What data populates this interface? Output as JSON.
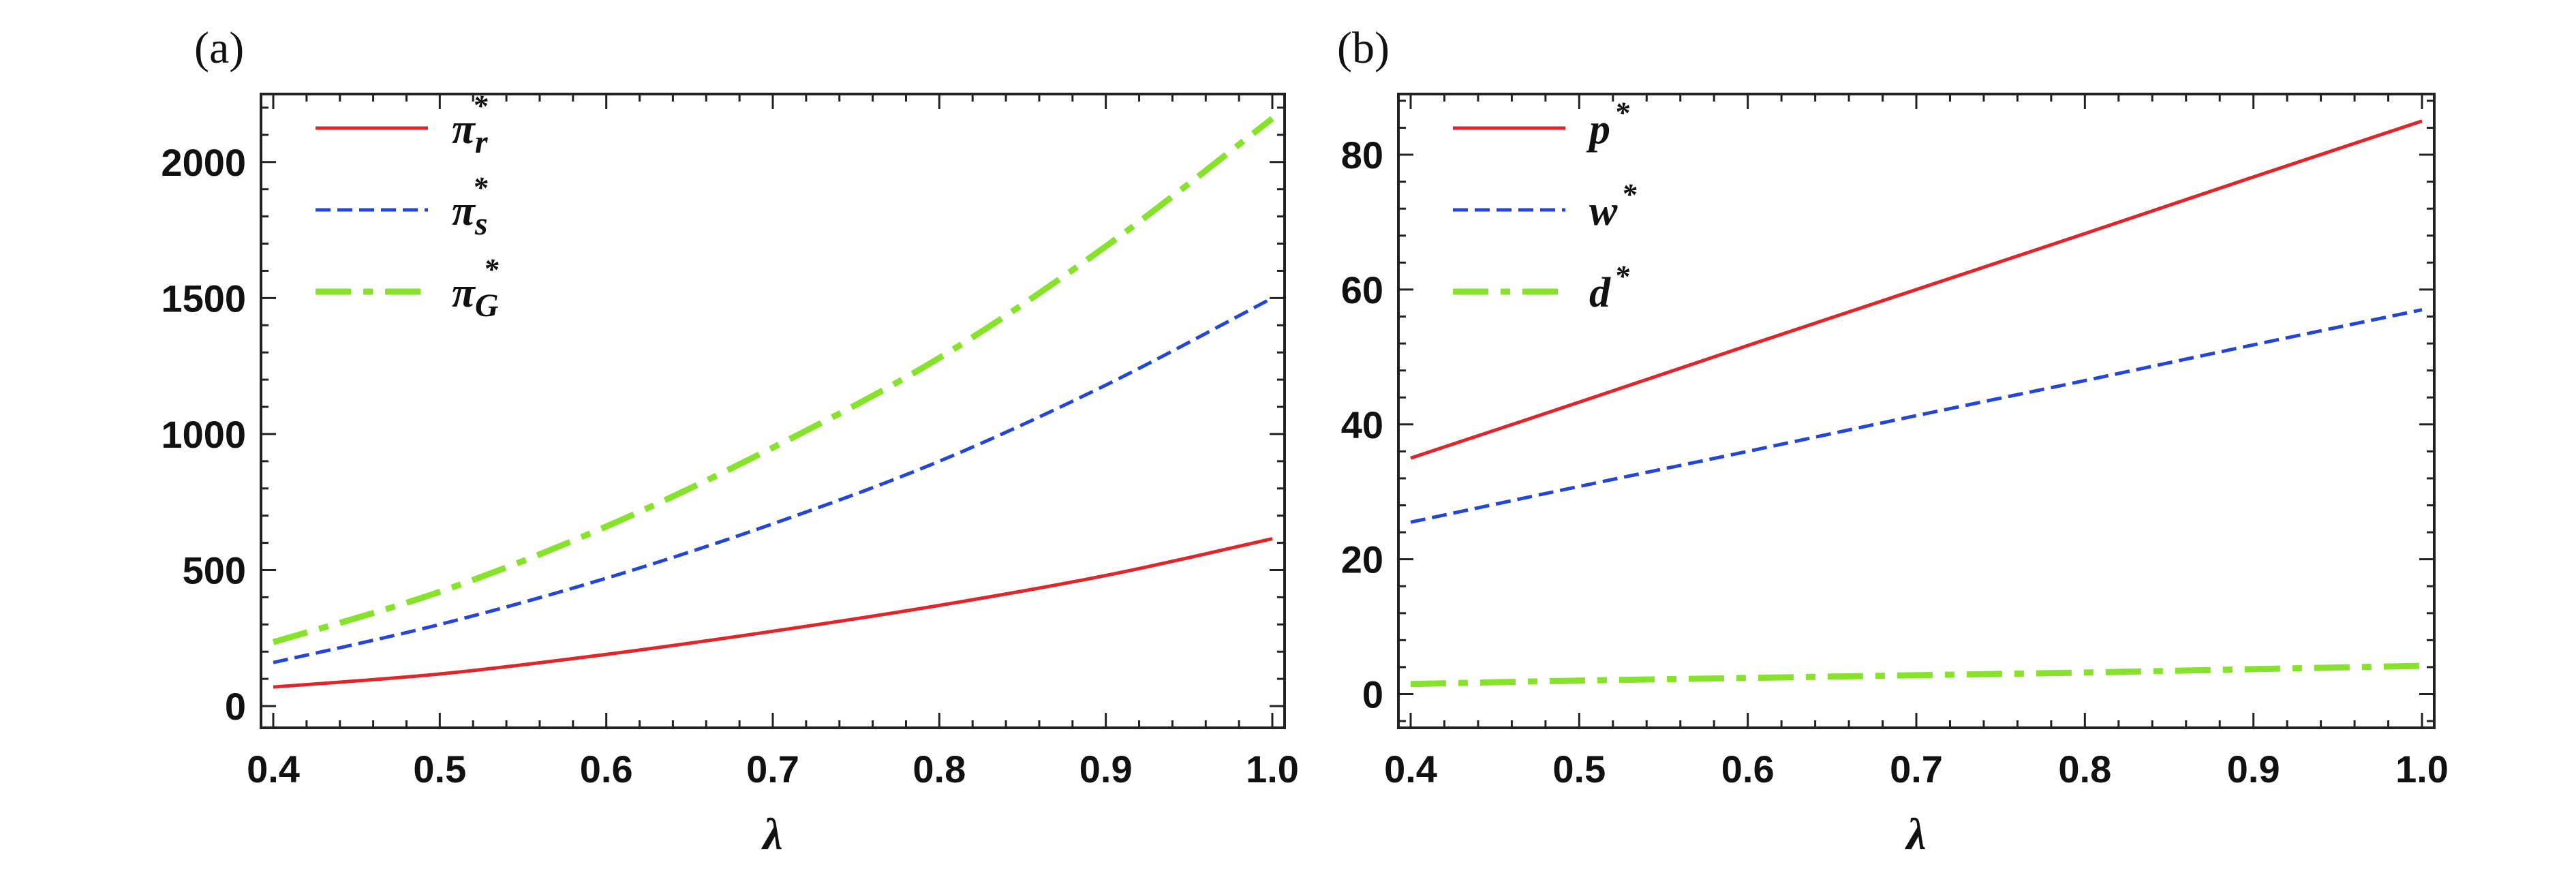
{
  "chart_data": [
    {
      "panel_label": "(a)",
      "type": "line",
      "xlabel": "λ",
      "ylabel": "",
      "xlim": [
        0.4,
        1.0
      ],
      "ylim": [
        -80,
        2250
      ],
      "xticks": [
        "0.4",
        "0.5",
        "0.6",
        "0.7",
        "0.8",
        "0.9",
        "1.0"
      ],
      "yticks": [
        "0",
        "500",
        "1000",
        "1500",
        "2000"
      ],
      "x": [
        0.4,
        0.5,
        0.6,
        0.7,
        0.8,
        0.9,
        1.0
      ],
      "legend_position": "top-left",
      "series": [
        {
          "name": "π",
          "sub": "r",
          "sup": "*",
          "color": "#e0262b",
          "style": "solid",
          "values": [
            70,
            118,
            190,
            275,
            370,
            480,
            615
          ]
        },
        {
          "name": "π",
          "sub": "s",
          "sup": "*",
          "color": "#2446d8",
          "style": "dashed",
          "values": [
            160,
            300,
            470,
            670,
            900,
            1180,
            1500
          ]
        },
        {
          "name": "π",
          "sub": "G",
          "sup": "*",
          "color": "#86e22a",
          "style": "dashdot",
          "values": [
            235,
            420,
            660,
            950,
            1280,
            1690,
            2160
          ]
        }
      ]
    },
    {
      "panel_label": "(b)",
      "type": "line",
      "xlabel": "λ",
      "ylabel": "",
      "xlim": [
        0.4,
        1.0
      ],
      "ylim": [
        -5,
        89
      ],
      "xticks": [
        "0.4",
        "0.5",
        "0.6",
        "0.7",
        "0.8",
        "0.9",
        "1.0"
      ],
      "yticks": [
        "0",
        "20",
        "40",
        "60",
        "80"
      ],
      "x": [
        0.4,
        0.5,
        0.6,
        0.7,
        0.8,
        0.9,
        1.0
      ],
      "legend_position": "top-left",
      "series": [
        {
          "name": "p",
          "sub": "",
          "sup": "*",
          "color": "#e0262b",
          "style": "solid",
          "values": [
            35,
            43.3,
            51.7,
            60,
            68.3,
            76.7,
            85
          ]
        },
        {
          "name": "w",
          "sub": "",
          "sup": "*",
          "color": "#2446d8",
          "style": "dashed",
          "values": [
            25.5,
            30.8,
            36,
            41.3,
            46.5,
            51.8,
            57
          ]
        },
        {
          "name": "d",
          "sub": "",
          "sup": "*",
          "color": "#86e22a",
          "style": "dashdot",
          "values": [
            1.5,
            2.0,
            2.4,
            2.8,
            3.2,
            3.7,
            4.2
          ]
        }
      ]
    }
  ]
}
